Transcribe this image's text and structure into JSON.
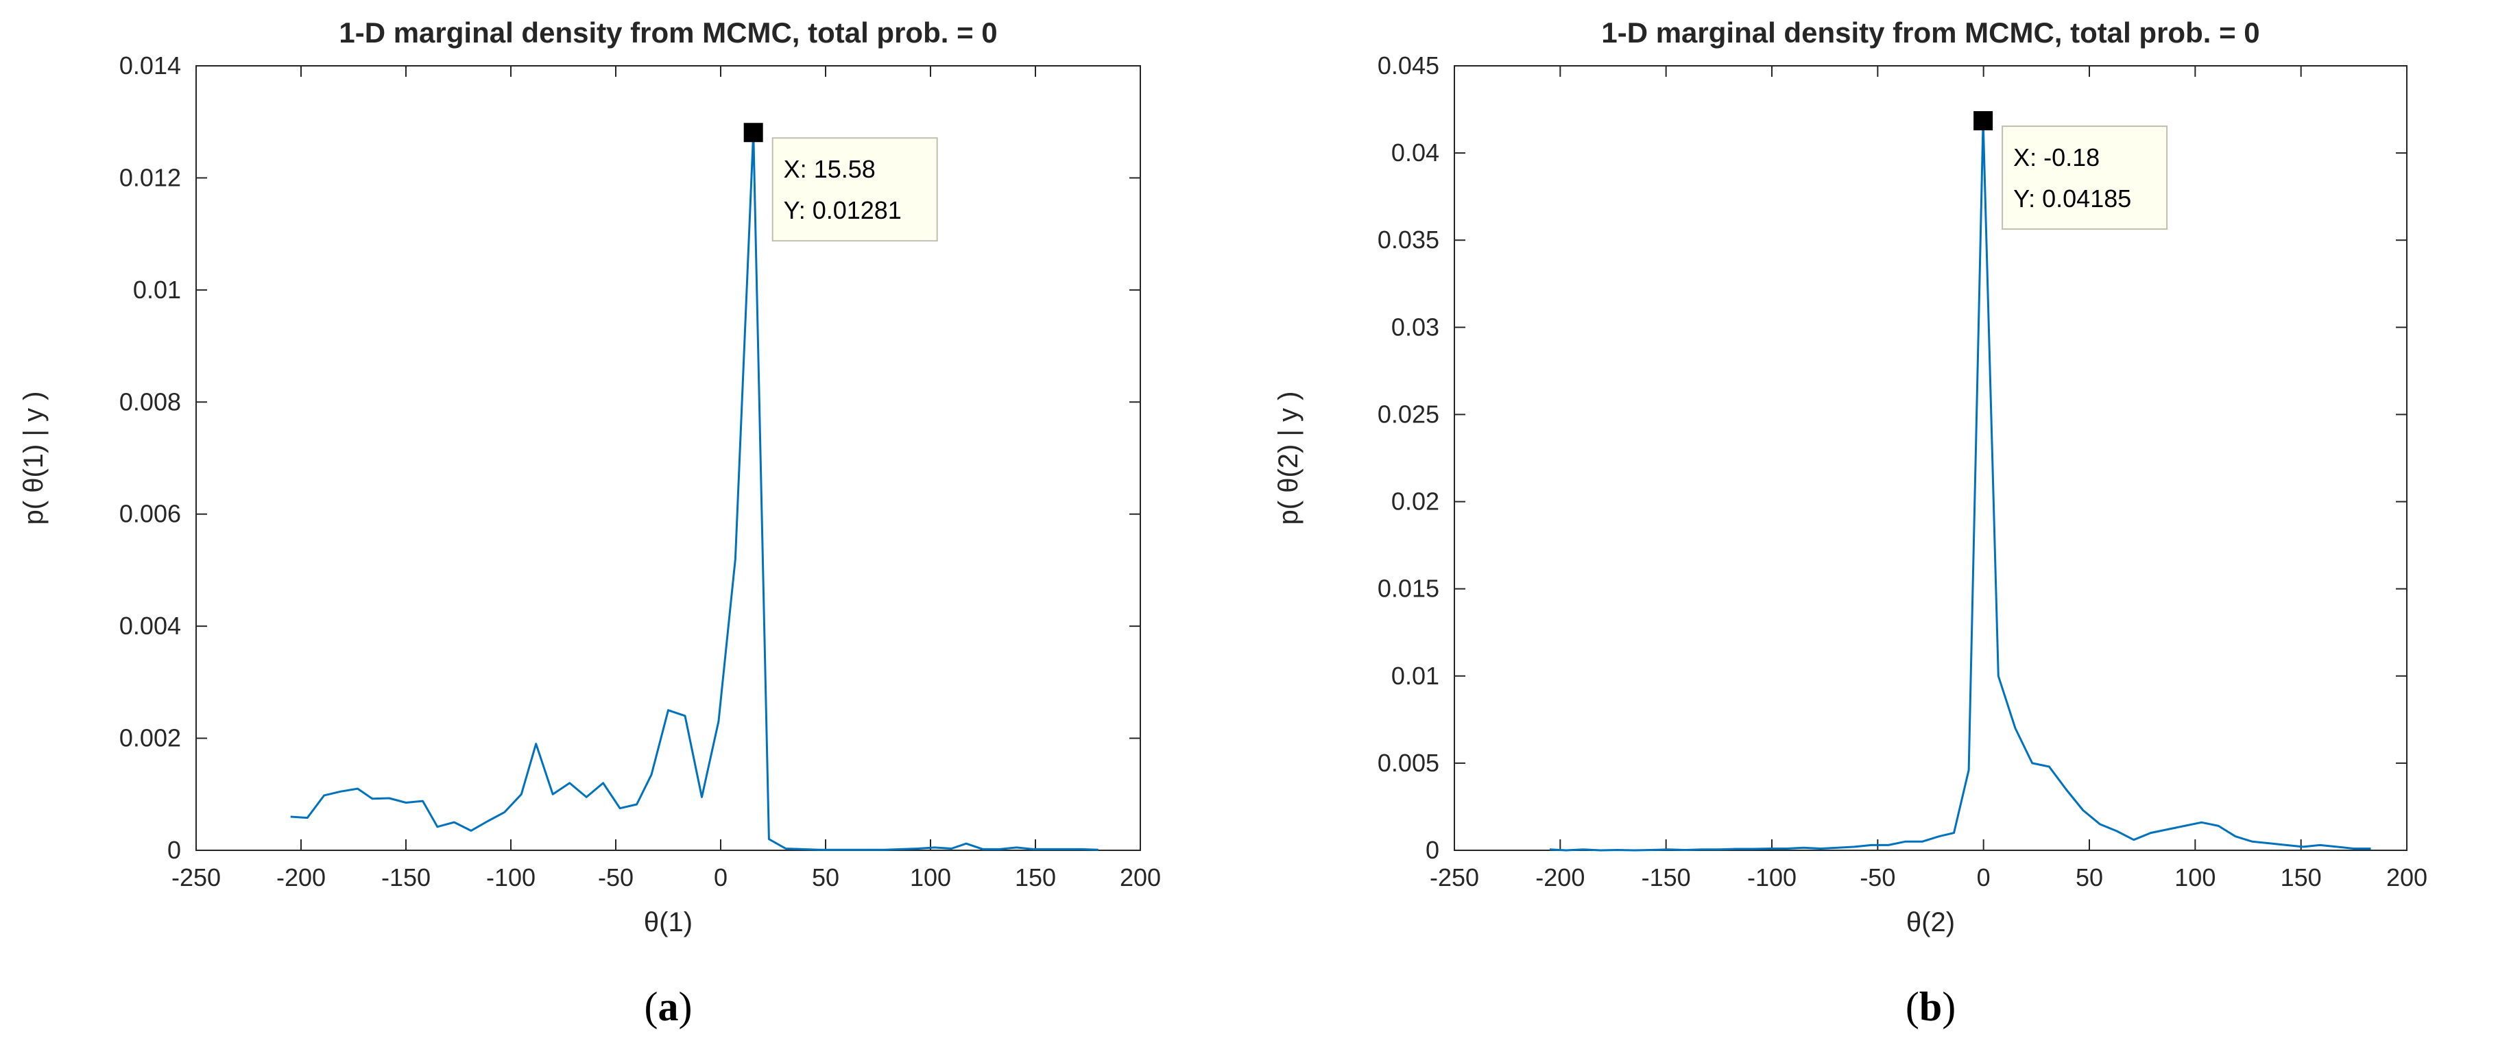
{
  "chart_data": [
    {
      "type": "line",
      "panel_label": "(a)",
      "title": "1-D marginal density from MCMC, total prob. = 0",
      "xlabel": "θ(1)",
      "ylabel": "p( θ(1) | y )",
      "xlim": [
        -250,
        200
      ],
      "ylim": [
        0,
        0.014
      ],
      "xticks": [
        "-250",
        "-200",
        "-150",
        "-100",
        "-50",
        "0",
        "50",
        "100",
        "150",
        "200"
      ],
      "yticks": [
        "0",
        "0.002",
        "0.004",
        "0.006",
        "0.008",
        "0.01",
        "0.012",
        "0.014"
      ],
      "grid": false,
      "line_color": "#0072BD",
      "series": [
        {
          "x": [
            -205,
            -197,
            -189,
            -181,
            -173,
            -166,
            -158,
            -150,
            -142,
            -135,
            -127,
            -119,
            -111,
            -103,
            -95,
            -88,
            -80,
            -72,
            -64,
            -56,
            -48,
            -40,
            -33,
            -25,
            -17,
            -9,
            -1,
            7,
            15.58,
            23,
            31,
            39,
            47,
            55,
            62,
            70,
            78,
            86,
            94,
            102,
            110,
            117,
            125,
            133,
            141,
            149,
            157,
            164,
            172,
            180
          ],
          "y": [
            0.0006,
            0.00058,
            0.00098,
            0.00105,
            0.0011,
            0.00092,
            0.00093,
            0.00085,
            0.00088,
            0.00042,
            0.0005,
            0.00035,
            0.00052,
            0.00068,
            0.001,
            0.0019,
            0.001,
            0.0012,
            0.00095,
            0.0012,
            0.00075,
            0.00082,
            0.00135,
            0.0025,
            0.0024,
            0.00095,
            0.0023,
            0.0052,
            0.01281,
            0.0002,
            3e-05,
            2e-05,
            1e-05,
            1e-05,
            1e-05,
            1e-05,
            1e-05,
            2e-05,
            3e-05,
            5e-05,
            3e-05,
            0.00012,
            2e-05,
            2e-05,
            5e-05,
            2e-05,
            2e-05,
            2e-05,
            2e-05,
            1e-05
          ]
        }
      ],
      "datatip": {
        "x_text": "X: 15.58",
        "y_text": "Y: 0.01281",
        "x": 15.58,
        "y": 0.01281
      }
    },
    {
      "type": "line",
      "panel_label": "(b)",
      "title": "1-D marginal density from MCMC, total prob. = 0",
      "xlabel": "θ(2)",
      "ylabel": "p( θ(2) | y )",
      "xlim": [
        -250,
        200
      ],
      "ylim": [
        0,
        0.045
      ],
      "xticks": [
        "-250",
        "-200",
        "-150",
        "-100",
        "-50",
        "0",
        "50",
        "100",
        "150",
        "200"
      ],
      "yticks": [
        "0",
        "0.005",
        "0.01",
        "0.015",
        "0.02",
        "0.025",
        "0.03",
        "0.035",
        "0.04",
        "0.045"
      ],
      "grid": false,
      "line_color": "#0072BD",
      "series": [
        {
          "x": [
            -205,
            -197,
            -189,
            -181,
            -173,
            -165,
            -157,
            -149,
            -141,
            -133,
            -125,
            -117,
            -109,
            -101,
            -93,
            -85,
            -77,
            -69,
            -61,
            -53,
            -45,
            -37,
            -29,
            -21,
            -14,
            -7,
            -0.18,
            7,
            15,
            23,
            31,
            39,
            47,
            55,
            63,
            71,
            79,
            87,
            95,
            103,
            111,
            119,
            127,
            135,
            143,
            151,
            159,
            167,
            175,
            183
          ],
          "y": [
            5e-05,
            0.0,
            5e-05,
            0.0,
            2e-05,
            0.0,
            2e-05,
            5e-05,
            2e-05,
            5e-05,
            5e-05,
            8e-05,
            8e-05,
            0.0001,
            0.0001,
            0.00015,
            0.0001,
            0.00015,
            0.0002,
            0.0003,
            0.0003,
            0.0005,
            0.0005,
            0.0008,
            0.001,
            0.0046,
            0.04185,
            0.01,
            0.007,
            0.005,
            0.0048,
            0.0035,
            0.0023,
            0.0015,
            0.0011,
            0.0006,
            0.001,
            0.0012,
            0.0014,
            0.0016,
            0.0014,
            0.0008,
            0.0005,
            0.0004,
            0.0003,
            0.0002,
            0.0003,
            0.0002,
            0.0001,
            0.0001
          ]
        }
      ],
      "datatip": {
        "x_text": "X: -0.18",
        "y_text": "Y: 0.04185",
        "x": -0.18,
        "y": 0.04185
      }
    }
  ]
}
